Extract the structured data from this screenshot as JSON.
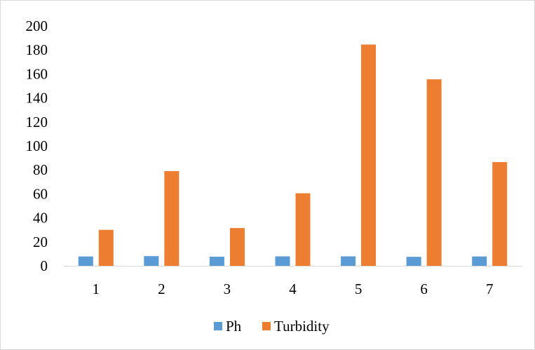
{
  "chart_data": {
    "type": "bar",
    "title": "",
    "xlabel": "",
    "ylabel": "",
    "categories": [
      "1",
      "2",
      "3",
      "4",
      "5",
      "6",
      "7"
    ],
    "series": [
      {
        "name": "Ph",
        "color": "#5B9BD5",
        "values": [
          7.8,
          8.1,
          7.6,
          7.9,
          7.9,
          7.5,
          7.8
        ]
      },
      {
        "name": "Turbidity",
        "color": "#ED7D31",
        "values": [
          30,
          79,
          31.5,
          60.5,
          184.5,
          155.5,
          86.5
        ]
      }
    ],
    "ylim": [
      0,
      200
    ],
    "yticks": [
      "0",
      "20",
      "40",
      "60",
      "80",
      "100",
      "120",
      "140",
      "160",
      "180",
      "200"
    ],
    "grid": false,
    "legend_position": "bottom"
  }
}
